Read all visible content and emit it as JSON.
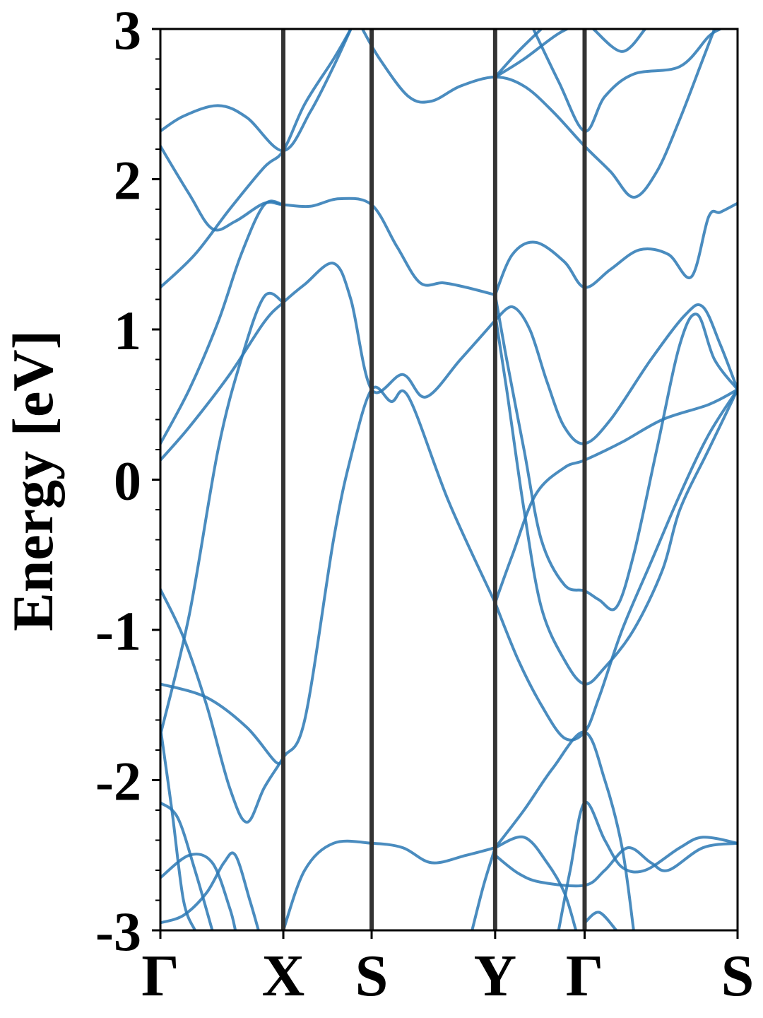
{
  "chart_data": {
    "type": "line",
    "title": "",
    "xlabel": "",
    "ylabel": "Energy [eV]",
    "ylim": [
      -3,
      3
    ],
    "y_ticks": [
      "-3",
      "-2",
      "-1",
      "0",
      "1",
      "2",
      "3"
    ],
    "y_minor_step": 0.2,
    "grid": false,
    "legend": "none",
    "high_symmetry_points": [
      {
        "label": "Γ",
        "k": 0.0
      },
      {
        "label": "X",
        "k": 0.213
      },
      {
        "label": "S",
        "k": 0.366
      },
      {
        "label": "Y",
        "k": 0.58
      },
      {
        "label": "Γ",
        "k": 0.735
      },
      {
        "label": "S",
        "k": 1.0
      }
    ],
    "colors": {
      "band": "#2a78b4",
      "divider": "#333333",
      "axis": "#000000"
    },
    "series": [
      {
        "points": [
          [
            0,
            2.32
          ],
          [
            0.04,
            2.42
          ],
          [
            0.1,
            2.49
          ],
          [
            0.15,
            2.41
          ],
          [
            0.213,
            2.19
          ],
          [
            0.26,
            2.45
          ],
          [
            0.3,
            2.75
          ],
          [
            0.33,
            3.0
          ]
        ]
      },
      {
        "points": [
          [
            0,
            2.22
          ],
          [
            0.05,
            1.9
          ],
          [
            0.09,
            1.67
          ],
          [
            0.13,
            1.72
          ],
          [
            0.18,
            1.84
          ],
          [
            0.213,
            1.83
          ],
          [
            0.26,
            1.82
          ],
          [
            0.31,
            1.87
          ],
          [
            0.366,
            1.83
          ],
          [
            0.41,
            1.55
          ],
          [
            0.45,
            1.31
          ],
          [
            0.49,
            1.31
          ],
          [
            0.53,
            1.28
          ],
          [
            0.58,
            1.23
          ]
        ]
      },
      {
        "points": [
          [
            0,
            1.28
          ],
          [
            0.06,
            1.5
          ],
          [
            0.12,
            1.8
          ],
          [
            0.18,
            2.08
          ],
          [
            0.213,
            2.19
          ],
          [
            0.25,
            2.5
          ],
          [
            0.3,
            2.8
          ],
          [
            0.33,
            3.0
          ]
        ]
      },
      {
        "points": [
          [
            0,
            0.13
          ],
          [
            0.05,
            0.35
          ],
          [
            0.12,
            0.7
          ],
          [
            0.18,
            1.05
          ],
          [
            0.213,
            1.18
          ],
          [
            0.25,
            1.3
          ],
          [
            0.3,
            1.44
          ],
          [
            0.33,
            1.2
          ],
          [
            0.366,
            0.6
          ],
          [
            0.42,
            0.7
          ],
          [
            0.46,
            0.55
          ],
          [
            0.52,
            0.8
          ],
          [
            0.58,
            1.06
          ]
        ]
      },
      {
        "points": [
          [
            0,
            0.24
          ],
          [
            0.05,
            0.6
          ],
          [
            0.1,
            1.05
          ],
          [
            0.14,
            1.5
          ],
          [
            0.18,
            1.83
          ],
          [
            0.213,
            1.83
          ]
        ]
      },
      {
        "points": [
          [
            0,
            -1.7
          ],
          [
            0.05,
            -0.9
          ],
          [
            0.1,
            0.2
          ],
          [
            0.14,
            0.8
          ],
          [
            0.18,
            1.22
          ],
          [
            0.213,
            1.18
          ]
        ]
      },
      {
        "points": [
          [
            0,
            -0.73
          ],
          [
            0.04,
            -1.05
          ],
          [
            0.08,
            -1.5
          ],
          [
            0.12,
            -2.05
          ],
          [
            0.15,
            -2.28
          ],
          [
            0.18,
            -2.05
          ],
          [
            0.213,
            -1.85
          ],
          [
            0.25,
            -1.6
          ],
          [
            0.3,
            -0.4
          ],
          [
            0.33,
            0.15
          ],
          [
            0.366,
            0.6
          ],
          [
            0.4,
            0.52
          ],
          [
            0.43,
            0.55
          ],
          [
            0.5,
            -0.15
          ],
          [
            0.58,
            -0.82
          ]
        ]
      },
      {
        "points": [
          [
            0,
            -1.36
          ],
          [
            0.08,
            -1.45
          ],
          [
            0.15,
            -1.65
          ],
          [
            0.2,
            -1.88
          ],
          [
            0.213,
            -1.85
          ]
        ]
      },
      {
        "points": [
          [
            0.213,
            -3.0
          ],
          [
            0.25,
            -2.6
          ],
          [
            0.3,
            -2.42
          ],
          [
            0.366,
            -2.42
          ],
          [
            0.42,
            -2.45
          ],
          [
            0.47,
            -2.55
          ],
          [
            0.53,
            -2.5
          ],
          [
            0.58,
            -2.45
          ]
        ]
      },
      {
        "points": [
          [
            0,
            -2.15
          ],
          [
            0.03,
            -2.25
          ],
          [
            0.06,
            -2.6
          ],
          [
            0.09,
            -3.0
          ]
        ]
      },
      {
        "points": [
          [
            0,
            -1.65
          ],
          [
            0.02,
            -2.2
          ],
          [
            0.04,
            -2.8
          ],
          [
            0.06,
            -3.0
          ]
        ]
      },
      {
        "points": [
          [
            0,
            -2.65
          ],
          [
            0.05,
            -2.5
          ],
          [
            0.09,
            -2.55
          ],
          [
            0.12,
            -2.85
          ],
          [
            0.13,
            -3.0
          ]
        ]
      },
      {
        "points": [
          [
            0,
            -2.95
          ],
          [
            0.04,
            -2.9
          ],
          [
            0.08,
            -2.75
          ],
          [
            0.11,
            -2.55
          ],
          [
            0.13,
            -2.5
          ],
          [
            0.155,
            -2.8
          ],
          [
            0.17,
            -3.0
          ]
        ]
      },
      {
        "points": [
          [
            0.35,
            3.0
          ],
          [
            0.38,
            2.8
          ],
          [
            0.43,
            2.55
          ],
          [
            0.47,
            2.52
          ],
          [
            0.52,
            2.62
          ],
          [
            0.58,
            2.68
          ],
          [
            0.63,
            2.62
          ],
          [
            0.68,
            2.45
          ],
          [
            0.735,
            2.22
          ],
          [
            0.78,
            2.05
          ],
          [
            0.82,
            1.88
          ],
          [
            0.86,
            2.05
          ],
          [
            0.9,
            2.4
          ],
          [
            0.94,
            2.8
          ],
          [
            0.96,
            3.0
          ]
        ]
      },
      {
        "points": [
          [
            0.58,
            2.68
          ],
          [
            0.63,
            2.8
          ],
          [
            0.69,
            2.97
          ],
          [
            0.735,
            3.05
          ]
        ]
      },
      {
        "points": [
          [
            0.58,
            2.68
          ],
          [
            0.62,
            2.85
          ],
          [
            0.66,
            3.0
          ]
        ]
      },
      {
        "points": [
          [
            0.64,
            3.05
          ],
          [
            0.69,
            2.65
          ],
          [
            0.735,
            2.32
          ],
          [
            0.77,
            2.55
          ],
          [
            0.82,
            2.7
          ],
          [
            0.9,
            2.75
          ],
          [
            0.95,
            2.95
          ],
          [
            0.97,
            3.0
          ]
        ]
      },
      {
        "points": [
          [
            0.75,
            3.0
          ],
          [
            0.8,
            2.85
          ],
          [
            0.84,
            3.0
          ]
        ]
      },
      {
        "points": [
          [
            0.58,
            1.23
          ],
          [
            0.61,
            1.5
          ],
          [
            0.65,
            1.58
          ],
          [
            0.7,
            1.45
          ],
          [
            0.735,
            1.28
          ],
          [
            0.78,
            1.4
          ],
          [
            0.83,
            1.53
          ],
          [
            0.88,
            1.5
          ],
          [
            0.92,
            1.35
          ],
          [
            0.95,
            1.75
          ],
          [
            0.97,
            1.78
          ],
          [
            1.0,
            1.84
          ]
        ]
      },
      {
        "points": [
          [
            0.58,
            1.06
          ],
          [
            0.61,
            1.15
          ],
          [
            0.64,
            1.0
          ],
          [
            0.67,
            0.65
          ],
          [
            0.7,
            0.35
          ],
          [
            0.735,
            0.24
          ],
          [
            0.78,
            0.4
          ],
          [
            0.85,
            0.8
          ],
          [
            0.91,
            1.1
          ],
          [
            0.94,
            1.15
          ],
          [
            0.97,
            0.9
          ],
          [
            1.0,
            0.6
          ]
        ]
      },
      {
        "points": [
          [
            0.58,
            1.23
          ],
          [
            0.6,
            0.8
          ],
          [
            0.63,
            0.2
          ],
          [
            0.66,
            -0.4
          ],
          [
            0.7,
            -0.7
          ],
          [
            0.735,
            -0.74
          ],
          [
            0.76,
            -0.8
          ],
          [
            0.79,
            -0.85
          ],
          [
            0.82,
            -0.5
          ],
          [
            0.86,
            0.2
          ],
          [
            0.9,
            0.9
          ],
          [
            0.93,
            1.1
          ],
          [
            0.96,
            0.8
          ],
          [
            1.0,
            0.6
          ]
        ]
      },
      {
        "points": [
          [
            0.58,
            1.1
          ],
          [
            0.6,
            0.6
          ],
          [
            0.63,
            -0.2
          ],
          [
            0.66,
            -0.85
          ],
          [
            0.7,
            -1.2
          ],
          [
            0.735,
            -1.36
          ],
          [
            0.77,
            -1.25
          ],
          [
            0.82,
            -1.0
          ],
          [
            0.87,
            -0.6
          ],
          [
            0.9,
            -0.2
          ],
          [
            0.95,
            0.2
          ],
          [
            1.0,
            0.6
          ]
        ]
      },
      {
        "points": [
          [
            0.58,
            -0.82
          ],
          [
            0.62,
            -1.2
          ],
          [
            0.66,
            -1.5
          ],
          [
            0.7,
            -1.72
          ],
          [
            0.735,
            -1.68
          ],
          [
            0.76,
            -1.45
          ],
          [
            0.8,
            -1.0
          ],
          [
            0.85,
            -0.55
          ],
          [
            0.9,
            -0.1
          ],
          [
            0.95,
            0.3
          ],
          [
            1.0,
            0.6
          ]
        ]
      },
      {
        "points": [
          [
            0.58,
            -0.82
          ],
          [
            0.61,
            -0.5
          ],
          [
            0.65,
            -0.1
          ],
          [
            0.7,
            0.08
          ],
          [
            0.735,
            0.13
          ],
          [
            0.8,
            0.25
          ],
          [
            0.87,
            0.4
          ],
          [
            0.95,
            0.5
          ],
          [
            1.0,
            0.6
          ]
        ]
      },
      {
        "points": [
          [
            0.58,
            -2.45
          ],
          [
            0.63,
            -2.2
          ],
          [
            0.68,
            -1.92
          ],
          [
            0.735,
            -1.68
          ],
          [
            0.77,
            -2.0
          ],
          [
            0.8,
            -2.45
          ],
          [
            0.82,
            -3.0
          ]
        ]
      },
      {
        "points": [
          [
            0.58,
            -2.5
          ],
          [
            0.62,
            -2.62
          ],
          [
            0.66,
            -2.68
          ],
          [
            0.735,
            -2.7
          ],
          [
            0.77,
            -2.6
          ],
          [
            0.81,
            -2.45
          ],
          [
            0.85,
            -2.55
          ],
          [
            0.88,
            -2.6
          ],
          [
            0.94,
            -2.45
          ],
          [
            1.0,
            -2.42
          ]
        ]
      },
      {
        "points": [
          [
            0.58,
            -2.45
          ],
          [
            0.63,
            -2.38
          ],
          [
            0.67,
            -2.55
          ],
          [
            0.7,
            -2.75
          ],
          [
            0.72,
            -3.0
          ]
        ]
      },
      {
        "points": [
          [
            0.69,
            -3.0
          ],
          [
            0.71,
            -2.6
          ],
          [
            0.735,
            -2.15
          ],
          [
            0.77,
            -2.4
          ],
          [
            0.8,
            -2.58
          ],
          [
            0.84,
            -2.6
          ],
          [
            0.9,
            -2.45
          ],
          [
            0.94,
            -2.38
          ],
          [
            1.0,
            -2.42
          ]
        ]
      },
      {
        "points": [
          [
            0.735,
            -2.95
          ],
          [
            0.76,
            -2.88
          ],
          [
            0.79,
            -3.0
          ]
        ]
      },
      {
        "points": [
          [
            0.54,
            -3.0
          ],
          [
            0.56,
            -2.7
          ],
          [
            0.58,
            -2.45
          ]
        ]
      }
    ]
  }
}
